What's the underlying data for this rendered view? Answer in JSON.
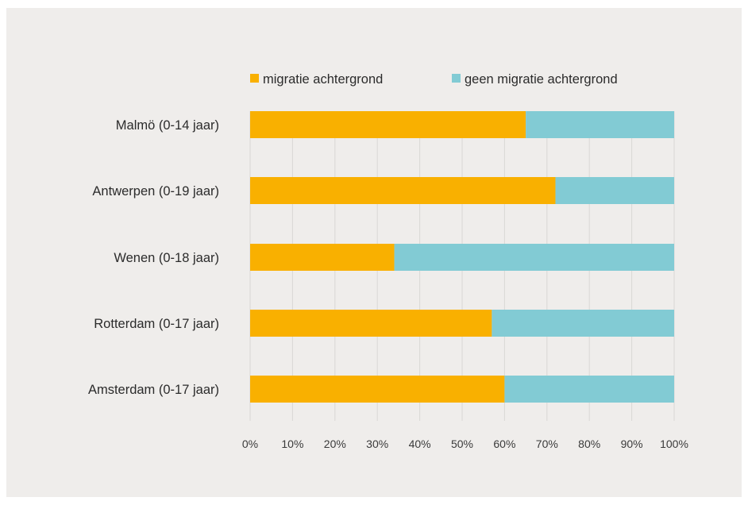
{
  "chart_data": {
    "type": "bar",
    "orientation": "horizontal",
    "stacked": true,
    "categories": [
      "Malmö (0-14 jaar)",
      "Antwerpen (0-19 jaar)",
      "Wenen (0-18 jaar)",
      "Rotterdam (0-17 jaar)",
      "Amsterdam (0-17 jaar)"
    ],
    "series": [
      {
        "name": "migratie achtergrond",
        "color": "#f9b000",
        "values": [
          65,
          72,
          34,
          57,
          60
        ]
      },
      {
        "name": "geen migratie achtergrond",
        "color": "#82cbd4",
        "values": [
          35,
          28,
          66,
          43,
          40
        ]
      }
    ],
    "xlim": [
      0,
      100
    ],
    "xticks": [
      "0%",
      "10%",
      "20%",
      "30%",
      "40%",
      "50%",
      "60%",
      "70%",
      "80%",
      "90%",
      "100%"
    ],
    "title": "",
    "xlabel": "",
    "ylabel": "",
    "grid": "vertical",
    "legend": "top"
  }
}
